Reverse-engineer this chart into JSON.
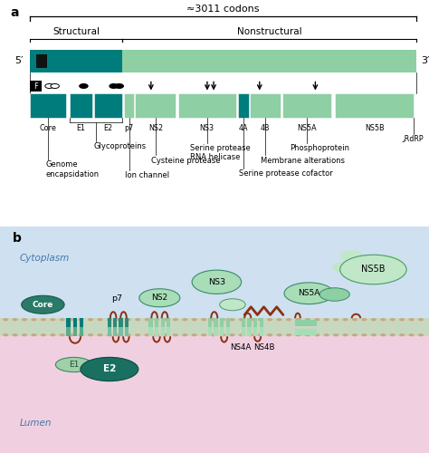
{
  "bg_color": "#ffffff",
  "title_a": "a",
  "title_b": "b",
  "codons_label": "≈3011 codons",
  "structural_label": "Structural",
  "nonstructural_label": "Nonstructural",
  "five_prime": "5′",
  "three_prime": "3′",
  "genome_dark": "#007c7c",
  "genome_light": "#8ecfa3",
  "seg_dark": "#007c7c",
  "seg_light": "#8ecfa3",
  "seg_tiny": "#8ecfa3",
  "cytoplasm_color": "#d8eaf5",
  "lumen_color": "#f0d8e5",
  "membrane_top": "#b5c9b5",
  "membrane_bot": "#b5c9b5",
  "dot_color": "#c8a882",
  "core_fill": "#2a7a6a",
  "e1_fill": "#7abfa0",
  "e2_fill_top": "#1a6a5a",
  "e2_fill_bot": "#4a9a80",
  "ns2_fill": "#a0d4b0",
  "ns3_fill": "#a0d4b0",
  "ns3_top_fill": "#c0e8c8",
  "ns4ab_fill": "#8ecfa3",
  "ns5a_fill": "#a0d4b0",
  "ns5b_fill": "#c0e8c8",
  "helix_dark": "#007c7c",
  "helix_light": "#8ecfa3",
  "loop_color": "#8B3010",
  "squiggle_color": "#8B3010"
}
